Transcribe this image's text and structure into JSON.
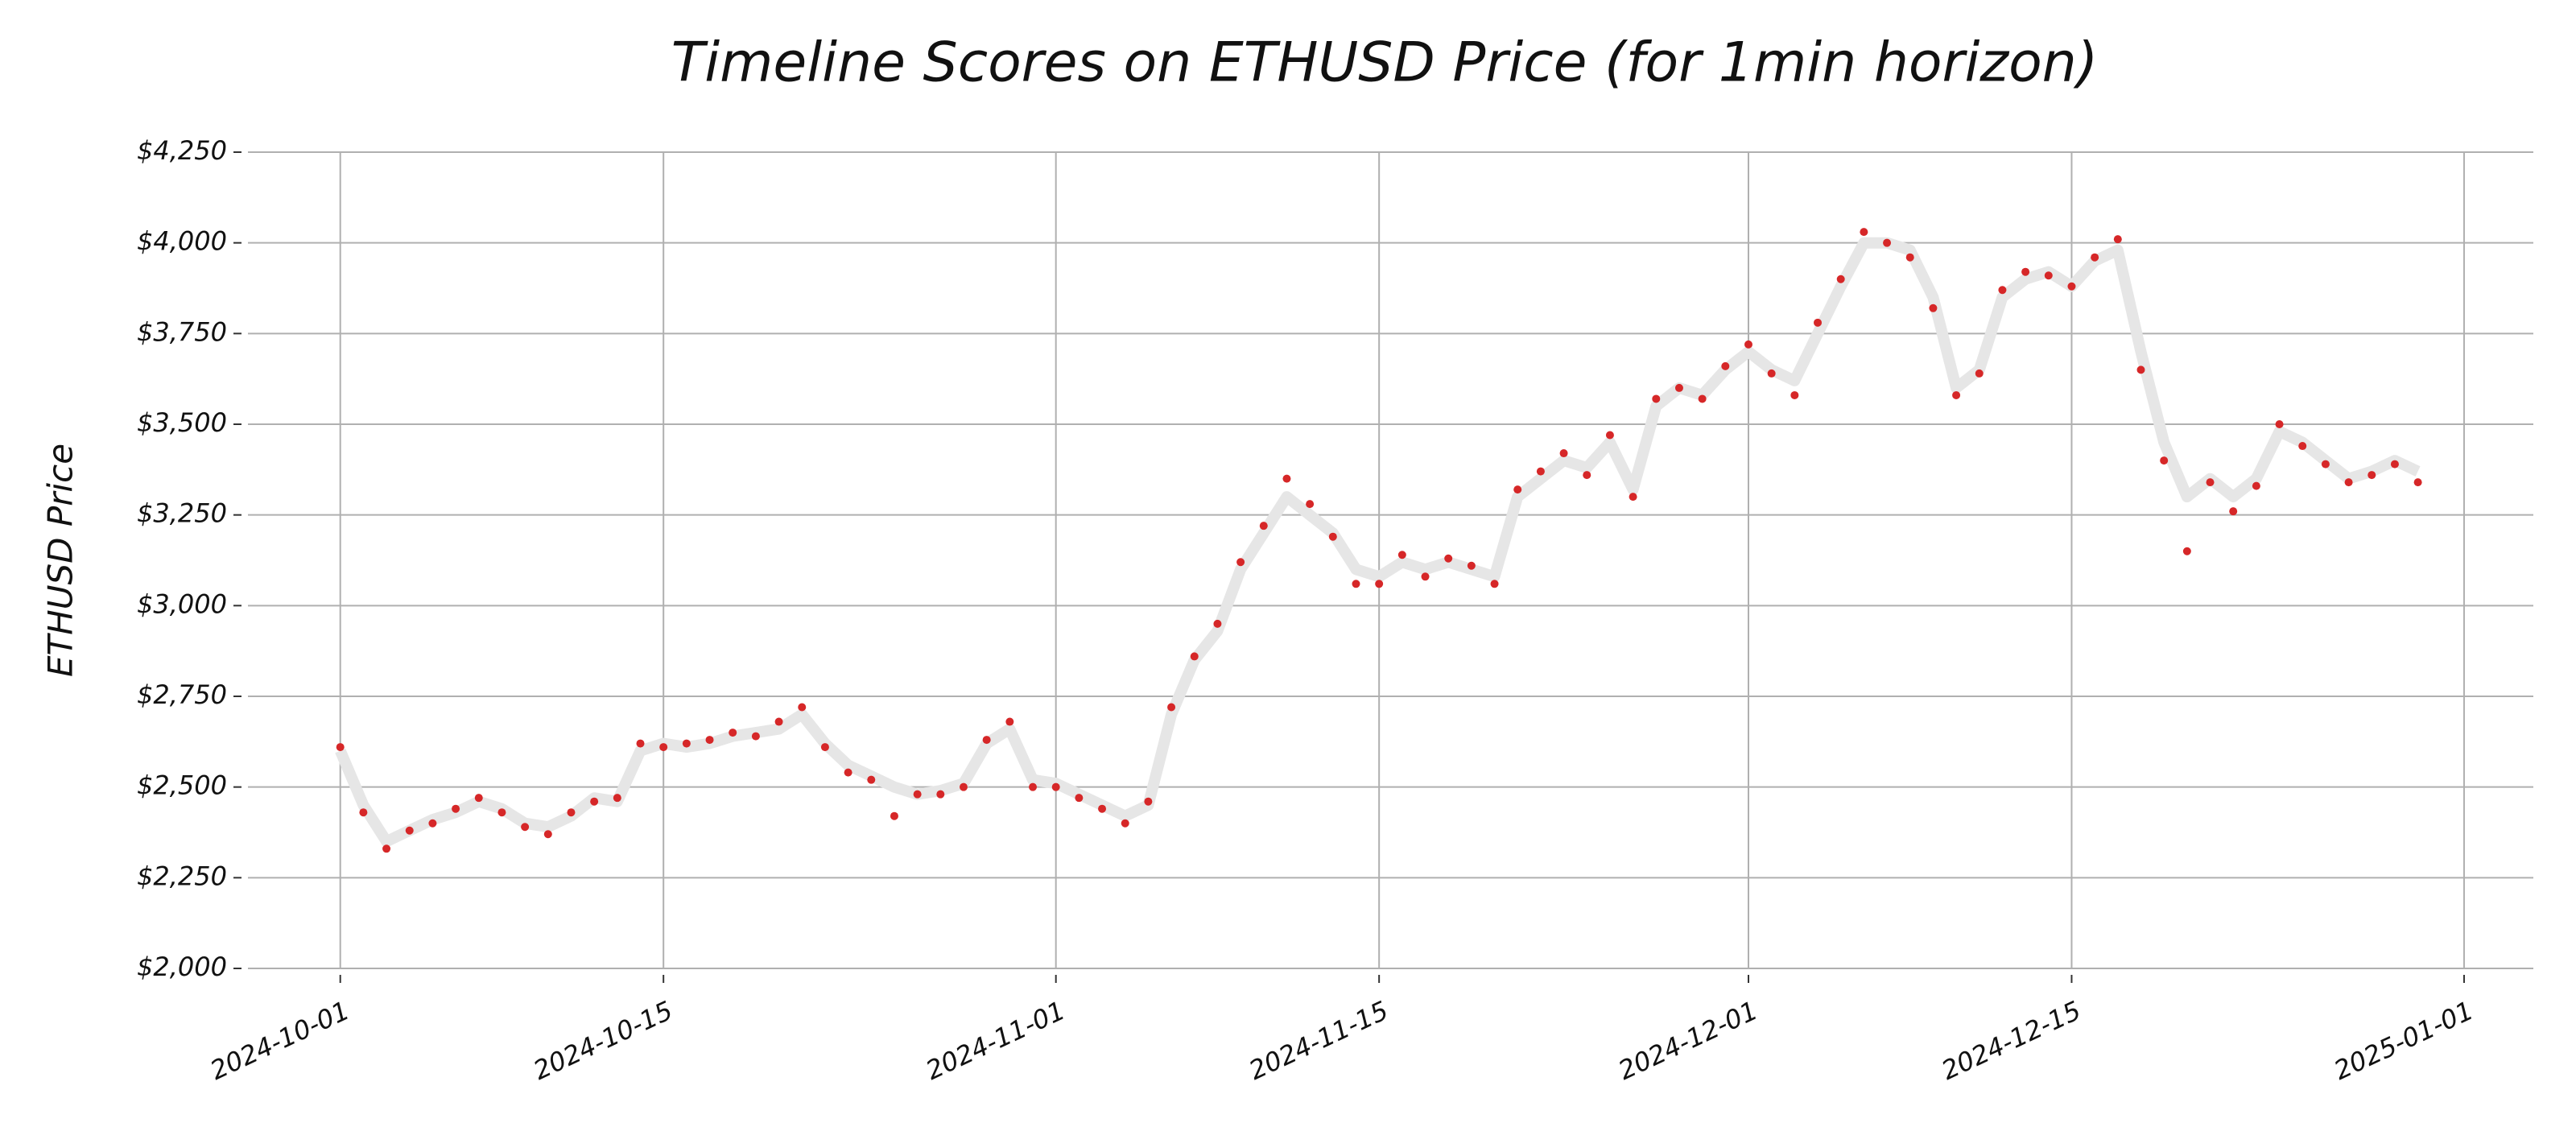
{
  "chart_data": {
    "type": "scatter",
    "title": "Timeline Scores on ETHUSD Price (for 1min horizon)",
    "y_label": "ETHUSD Price",
    "x": [
      "2024-10-01",
      "2024-10-02",
      "2024-10-03",
      "2024-10-04",
      "2024-10-05",
      "2024-10-06",
      "2024-10-07",
      "2024-10-08",
      "2024-10-09",
      "2024-10-10",
      "2024-10-11",
      "2024-10-12",
      "2024-10-13",
      "2024-10-14",
      "2024-10-15",
      "2024-10-16",
      "2024-10-17",
      "2024-10-18",
      "2024-10-19",
      "2024-10-20",
      "2024-10-21",
      "2024-10-22",
      "2024-10-23",
      "2024-10-24",
      "2024-10-25",
      "2024-10-26",
      "2024-10-27",
      "2024-10-28",
      "2024-10-29",
      "2024-10-30",
      "2024-10-31",
      "2024-11-01",
      "2024-11-02",
      "2024-11-03",
      "2024-11-04",
      "2024-11-05",
      "2024-11-06",
      "2024-11-07",
      "2024-11-08",
      "2024-11-09",
      "2024-11-10",
      "2024-11-11",
      "2024-11-12",
      "2024-11-13",
      "2024-11-14",
      "2024-11-15",
      "2024-11-16",
      "2024-11-17",
      "2024-11-18",
      "2024-11-19",
      "2024-11-20",
      "2024-11-21",
      "2024-11-22",
      "2024-11-23",
      "2024-11-24",
      "2024-11-25",
      "2024-11-26",
      "2024-11-27",
      "2024-11-28",
      "2024-11-29",
      "2024-11-30",
      "2024-12-01",
      "2024-12-02",
      "2024-12-03",
      "2024-12-04",
      "2024-12-05",
      "2024-12-06",
      "2024-12-07",
      "2024-12-08",
      "2024-12-09",
      "2024-12-10",
      "2024-12-11",
      "2024-12-12",
      "2024-12-13",
      "2024-12-14",
      "2024-12-15",
      "2024-12-16",
      "2024-12-17",
      "2024-12-18",
      "2024-12-19",
      "2024-12-20",
      "2024-12-21",
      "2024-12-22",
      "2024-12-23",
      "2024-12-24",
      "2024-12-25",
      "2024-12-26",
      "2024-12-27",
      "2024-12-28",
      "2024-12-29",
      "2024-12-30"
    ],
    "series": [
      {
        "type": "line",
        "color": "#e6e6e6",
        "values": [
          2600,
          2450,
          2350,
          2380,
          2410,
          2430,
          2460,
          2440,
          2400,
          2390,
          2420,
          2470,
          2460,
          2600,
          2620,
          2610,
          2620,
          2640,
          2650,
          2660,
          2700,
          2620,
          2560,
          2530,
          2500,
          2480,
          2490,
          2510,
          2620,
          2660,
          2520,
          2510,
          2480,
          2450,
          2420,
          2450,
          2700,
          2850,
          2930,
          3100,
          3200,
          3300,
          3250,
          3200,
          3100,
          3080,
          3120,
          3100,
          3120,
          3100,
          3080,
          3300,
          3350,
          3400,
          3380,
          3450,
          3320,
          3550,
          3600,
          3580,
          3650,
          3700,
          3650,
          3620,
          3750,
          3880,
          4000,
          4000,
          3980,
          3850,
          3600,
          3650,
          3850,
          3900,
          3920,
          3880,
          3950,
          3980,
          3700,
          3450,
          3300,
          3350,
          3300,
          3350,
          3480,
          3450,
          3400,
          3350,
          3370,
          3400,
          3370
        ]
      },
      {
        "type": "scatter",
        "color": "#d62728",
        "values": [
          2610,
          2430,
          2330,
          2380,
          2400,
          2440,
          2470,
          2430,
          2390,
          2370,
          2430,
          2460,
          2470,
          2620,
          2610,
          2620,
          2630,
          2650,
          2640,
          2680,
          2720,
          2610,
          2540,
          2520,
          2420,
          2480,
          2480,
          2500,
          2630,
          2680,
          2500,
          2500,
          2470,
          2440,
          2400,
          2460,
          2720,
          2860,
          2950,
          3120,
          3220,
          3350,
          3280,
          3190,
          3060,
          3060,
          3140,
          3080,
          3130,
          3110,
          3060,
          3320,
          3370,
          3420,
          3360,
          3470,
          3300,
          3570,
          3600,
          3570,
          3660,
          3720,
          3640,
          3580,
          3780,
          3900,
          4030,
          4000,
          3960,
          3820,
          3580,
          3640,
          3870,
          3920,
          3910,
          3880,
          3960,
          4010,
          3650,
          3400,
          3150,
          3340,
          3260,
          3330,
          3500,
          3440,
          3390,
          3340,
          3360,
          3390,
          3340
        ]
      }
    ],
    "xlim": [
      "2024-09-27",
      "2025-01-04"
    ],
    "xticks": [
      "2024-10-01",
      "2024-10-15",
      "2024-11-01",
      "2024-11-15",
      "2024-12-01",
      "2024-12-15",
      "2025-01-01"
    ],
    "ylim": [
      2000,
      4250
    ],
    "yticks": [
      {
        "value": 2000,
        "label": "$2,000"
      },
      {
        "value": 2250,
        "label": "$2,250"
      },
      {
        "value": 2500,
        "label": "$2,500"
      },
      {
        "value": 2750,
        "label": "$2,750"
      },
      {
        "value": 3000,
        "label": "$3,000"
      },
      {
        "value": 3250,
        "label": "$3,250"
      },
      {
        "value": 3500,
        "label": "$3,500"
      },
      {
        "value": 3750,
        "label": "$3,750"
      },
      {
        "value": 4000,
        "label": "$4,000"
      },
      {
        "value": 4250,
        "label": "$4,250"
      }
    ],
    "grid": true
  }
}
